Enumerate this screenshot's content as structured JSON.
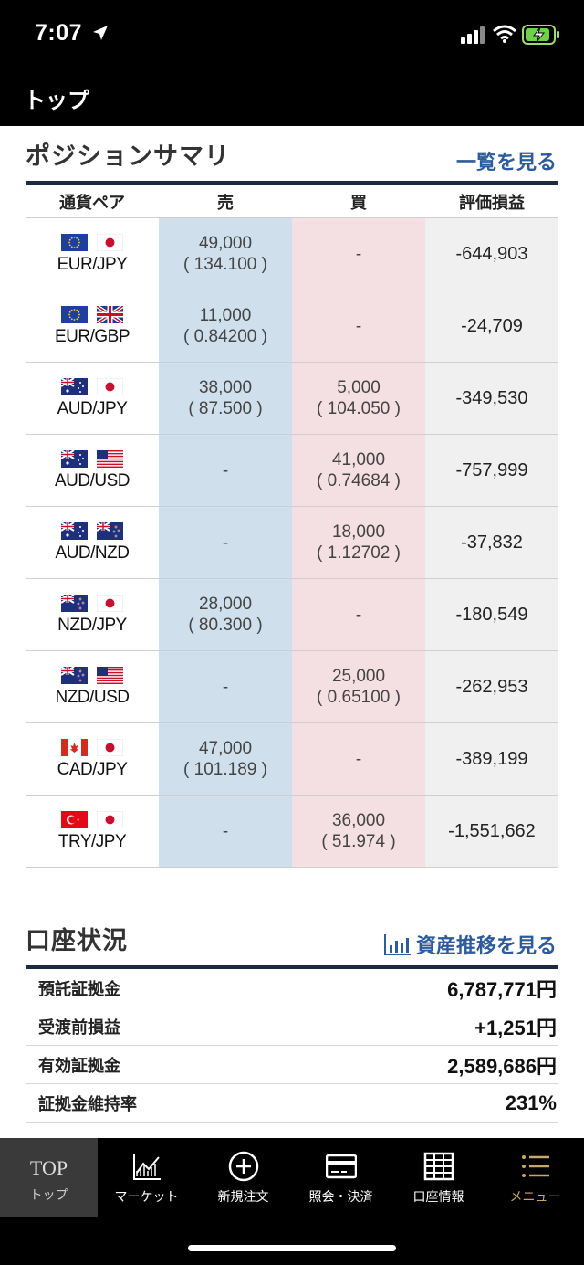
{
  "status": {
    "time": "7:07"
  },
  "header": {
    "title": "トップ"
  },
  "positions": {
    "title": "ポジションサマリ",
    "link": "一覧を見る",
    "columns": [
      "通貨ペア",
      "売",
      "買",
      "評価損益"
    ],
    "rows": [
      {
        "pair": "EUR/JPY",
        "flags": [
          "eu",
          "jp"
        ],
        "sell_qty": "49,000",
        "sell_rate": "( 134.100 )",
        "buy_qty": "-",
        "buy_rate": "",
        "pnl": "-644,903"
      },
      {
        "pair": "EUR/GBP",
        "flags": [
          "eu",
          "gb"
        ],
        "sell_qty": "11,000",
        "sell_rate": "( 0.84200 )",
        "buy_qty": "-",
        "buy_rate": "",
        "pnl": "-24,709"
      },
      {
        "pair": "AUD/JPY",
        "flags": [
          "au",
          "jp"
        ],
        "sell_qty": "38,000",
        "sell_rate": "( 87.500 )",
        "buy_qty": "5,000",
        "buy_rate": "( 104.050 )",
        "pnl": "-349,530"
      },
      {
        "pair": "AUD/USD",
        "flags": [
          "au",
          "us"
        ],
        "sell_qty": "-",
        "sell_rate": "",
        "buy_qty": "41,000",
        "buy_rate": "( 0.74684 )",
        "pnl": "-757,999"
      },
      {
        "pair": "AUD/NZD",
        "flags": [
          "au",
          "nz"
        ],
        "sell_qty": "-",
        "sell_rate": "",
        "buy_qty": "18,000",
        "buy_rate": "( 1.12702 )",
        "pnl": "-37,832"
      },
      {
        "pair": "NZD/JPY",
        "flags": [
          "nz",
          "jp"
        ],
        "sell_qty": "28,000",
        "sell_rate": "( 80.300 )",
        "buy_qty": "-",
        "buy_rate": "",
        "pnl": "-180,549"
      },
      {
        "pair": "NZD/USD",
        "flags": [
          "nz",
          "us"
        ],
        "sell_qty": "-",
        "sell_rate": "",
        "buy_qty": "25,000",
        "buy_rate": "( 0.65100 )",
        "pnl": "-262,953"
      },
      {
        "pair": "CAD/JPY",
        "flags": [
          "ca",
          "jp"
        ],
        "sell_qty": "47,000",
        "sell_rate": "( 101.189 )",
        "buy_qty": "-",
        "buy_rate": "",
        "pnl": "-389,199"
      },
      {
        "pair": "TRY/JPY",
        "flags": [
          "tr",
          "jp"
        ],
        "sell_qty": "-",
        "sell_rate": "",
        "buy_qty": "36,000",
        "buy_rate": "( 51.974 )",
        "pnl": "-1,551,662"
      }
    ]
  },
  "account": {
    "title": "口座状況",
    "link": "資産推移を見る",
    "rows": [
      {
        "label": "預託証拠金",
        "value": "6,787,771円"
      },
      {
        "label": "受渡前損益",
        "value": "+1,251円"
      },
      {
        "label": "有効証拠金",
        "value": "2,589,686円"
      },
      {
        "label": "証拠金維持率",
        "value": "231%"
      }
    ]
  },
  "tabs": [
    {
      "top": "TOP",
      "label": "トップ",
      "icon": "top-text"
    },
    {
      "label": "マーケット",
      "icon": "chart-icon"
    },
    {
      "label": "新規注文",
      "icon": "plus-circle-icon"
    },
    {
      "label": "照会・決済",
      "icon": "card-icon"
    },
    {
      "label": "口座情報",
      "icon": "grid-icon"
    },
    {
      "label": "メニュー",
      "icon": "menu-icon"
    }
  ],
  "colors": {
    "sell_bg": "#cfe0ec",
    "buy_bg": "#f4dfe3",
    "accent": "#2e5b9c",
    "menu": "#c9a76a"
  }
}
